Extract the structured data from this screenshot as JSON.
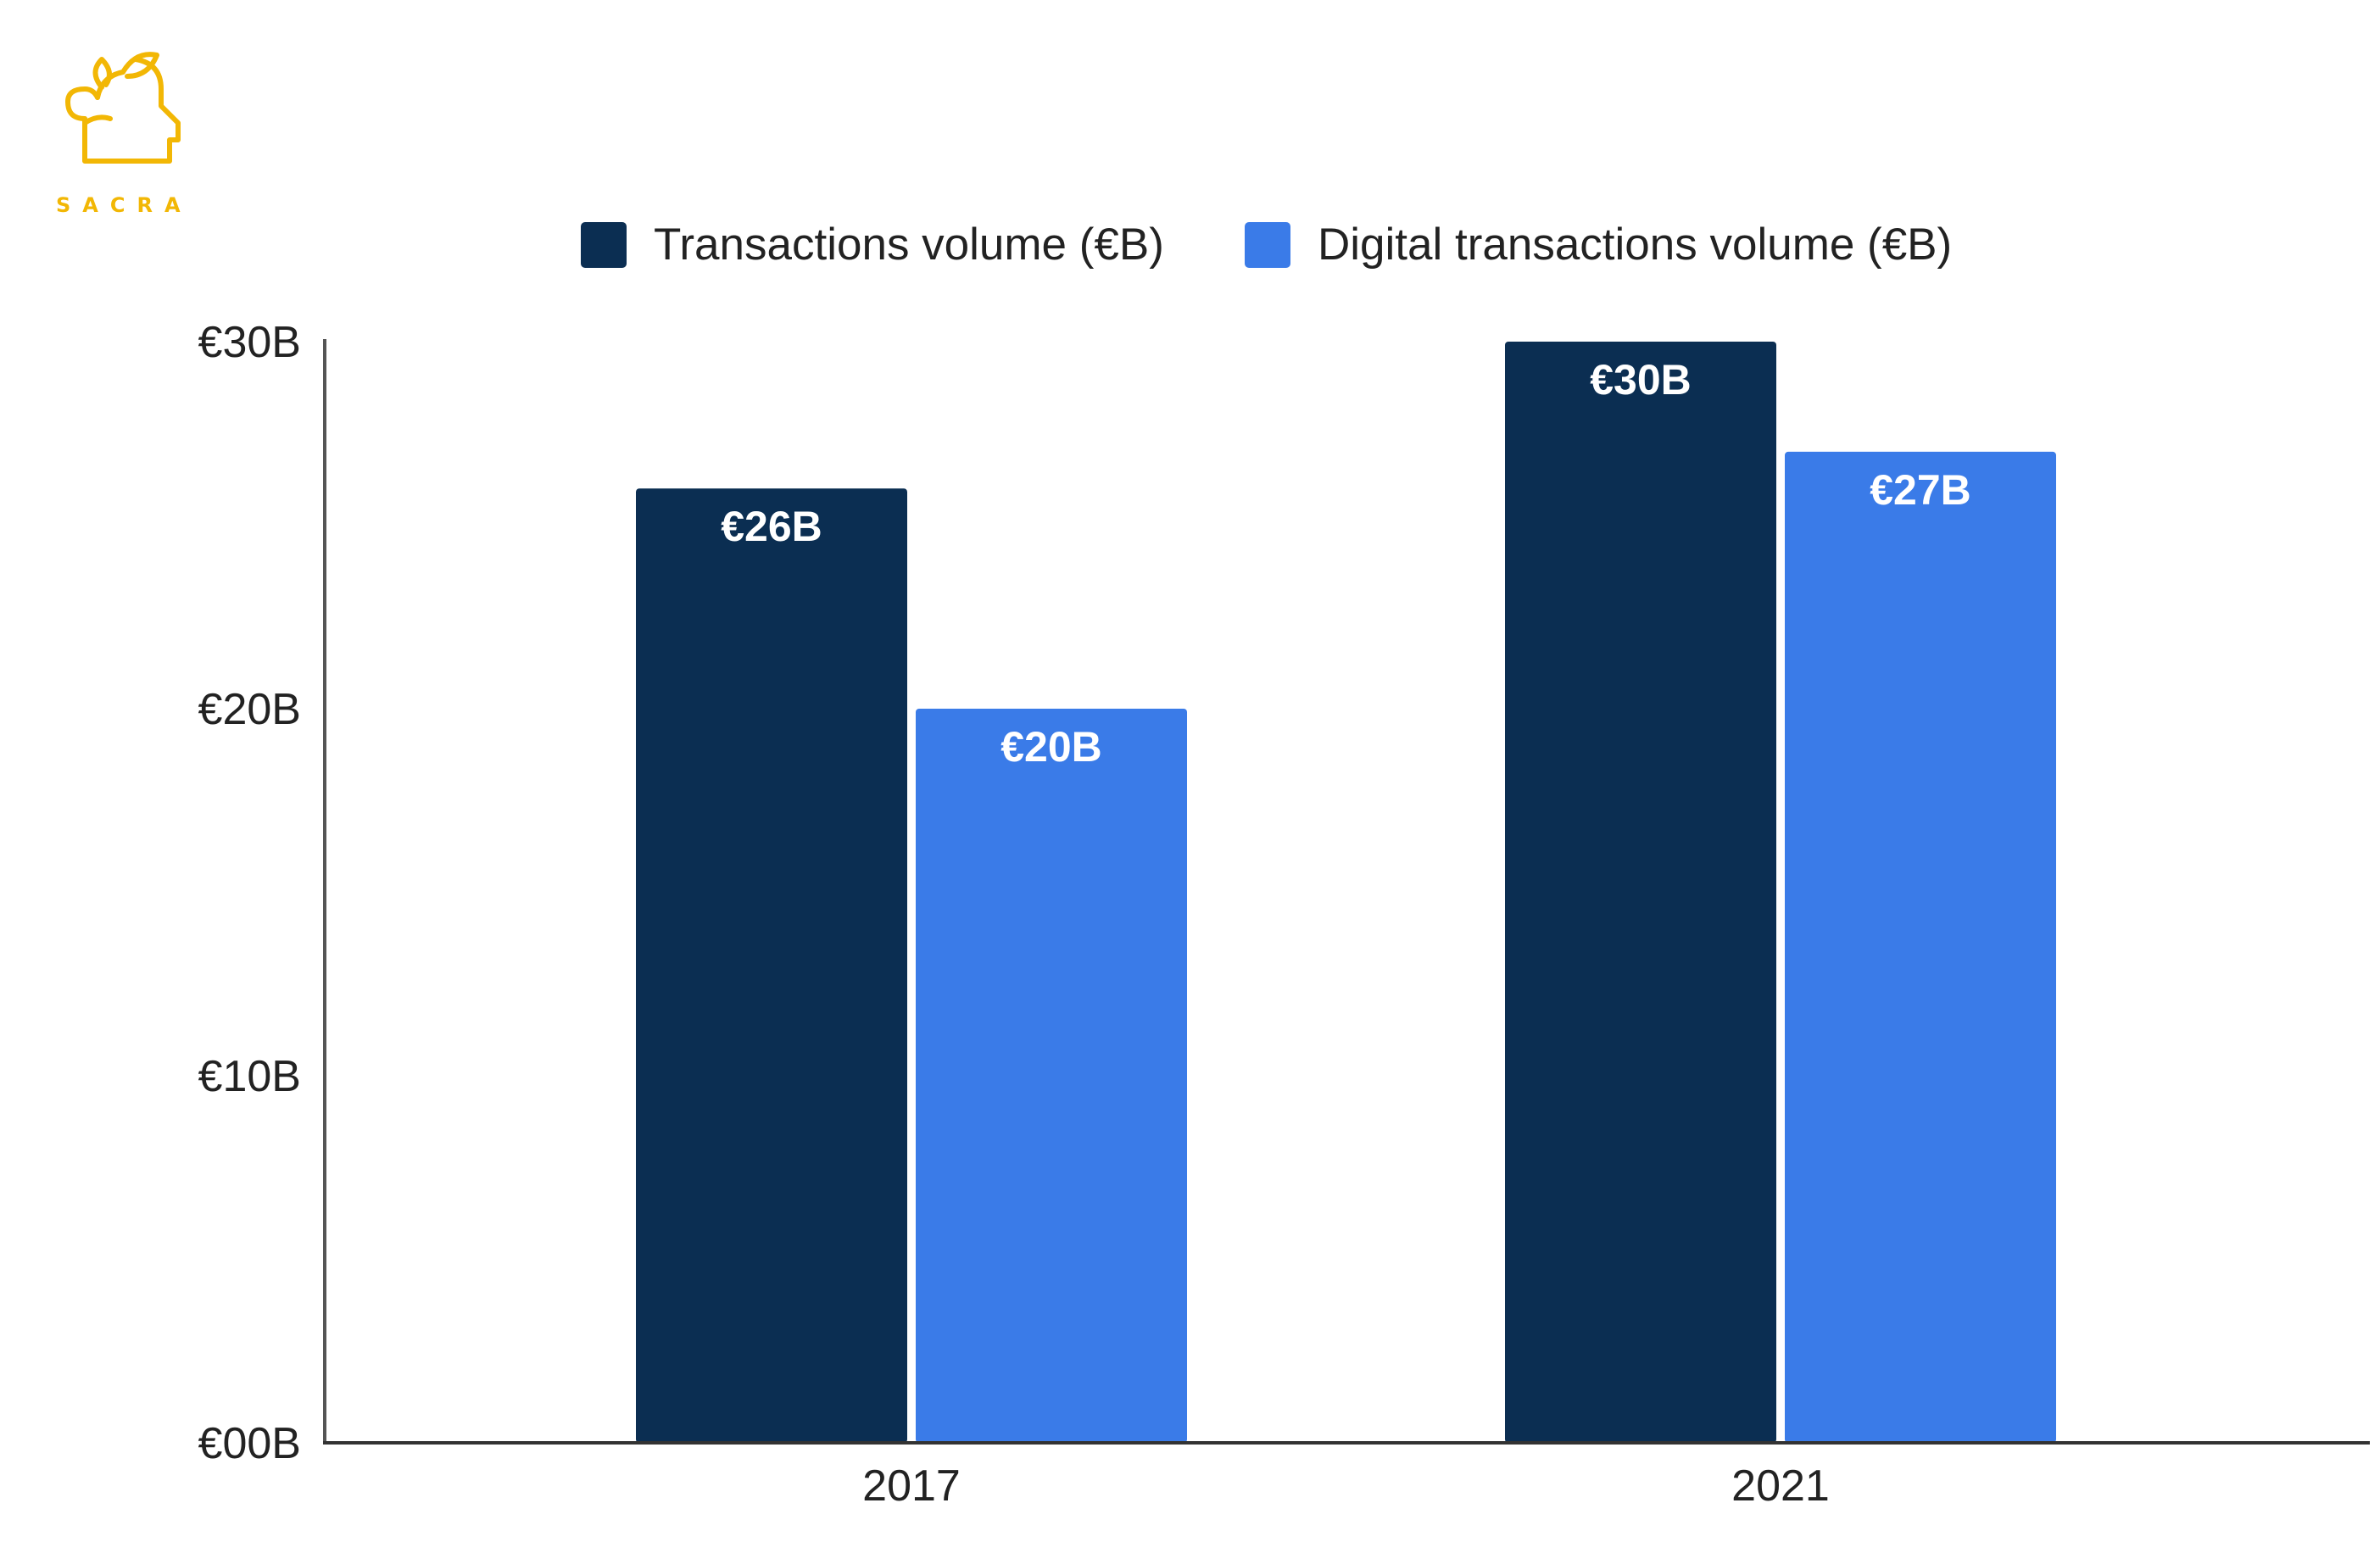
{
  "brand": {
    "name": "SACRA",
    "color": "#F2B705"
  },
  "legend": [
    {
      "label": "Transactions volume (€B)",
      "color": "#0B2E52"
    },
    {
      "label": "Digital transactions volume (€B)",
      "color": "#3A7BE8"
    }
  ],
  "chart_data": {
    "type": "bar",
    "categories": [
      "2017",
      "2021"
    ],
    "series": [
      {
        "name": "Transactions volume (€B)",
        "values": [
          26,
          30
        ],
        "labels": [
          "€26B",
          "€30B"
        ],
        "color": "#0B2E52"
      },
      {
        "name": "Digital transactions volume (€B)",
        "values": [
          20,
          27
        ],
        "labels": [
          "€20B",
          "€27B"
        ],
        "color": "#3A7BE8"
      }
    ],
    "y_ticks": [
      0,
      10,
      20,
      30
    ],
    "y_tick_labels": [
      "€00B",
      "€10B",
      "€20B",
      "€30B"
    ],
    "ylim": [
      0,
      30
    ],
    "grid": false,
    "legend_position": "top-center",
    "title": "",
    "xlabel": "",
    "ylabel": ""
  }
}
